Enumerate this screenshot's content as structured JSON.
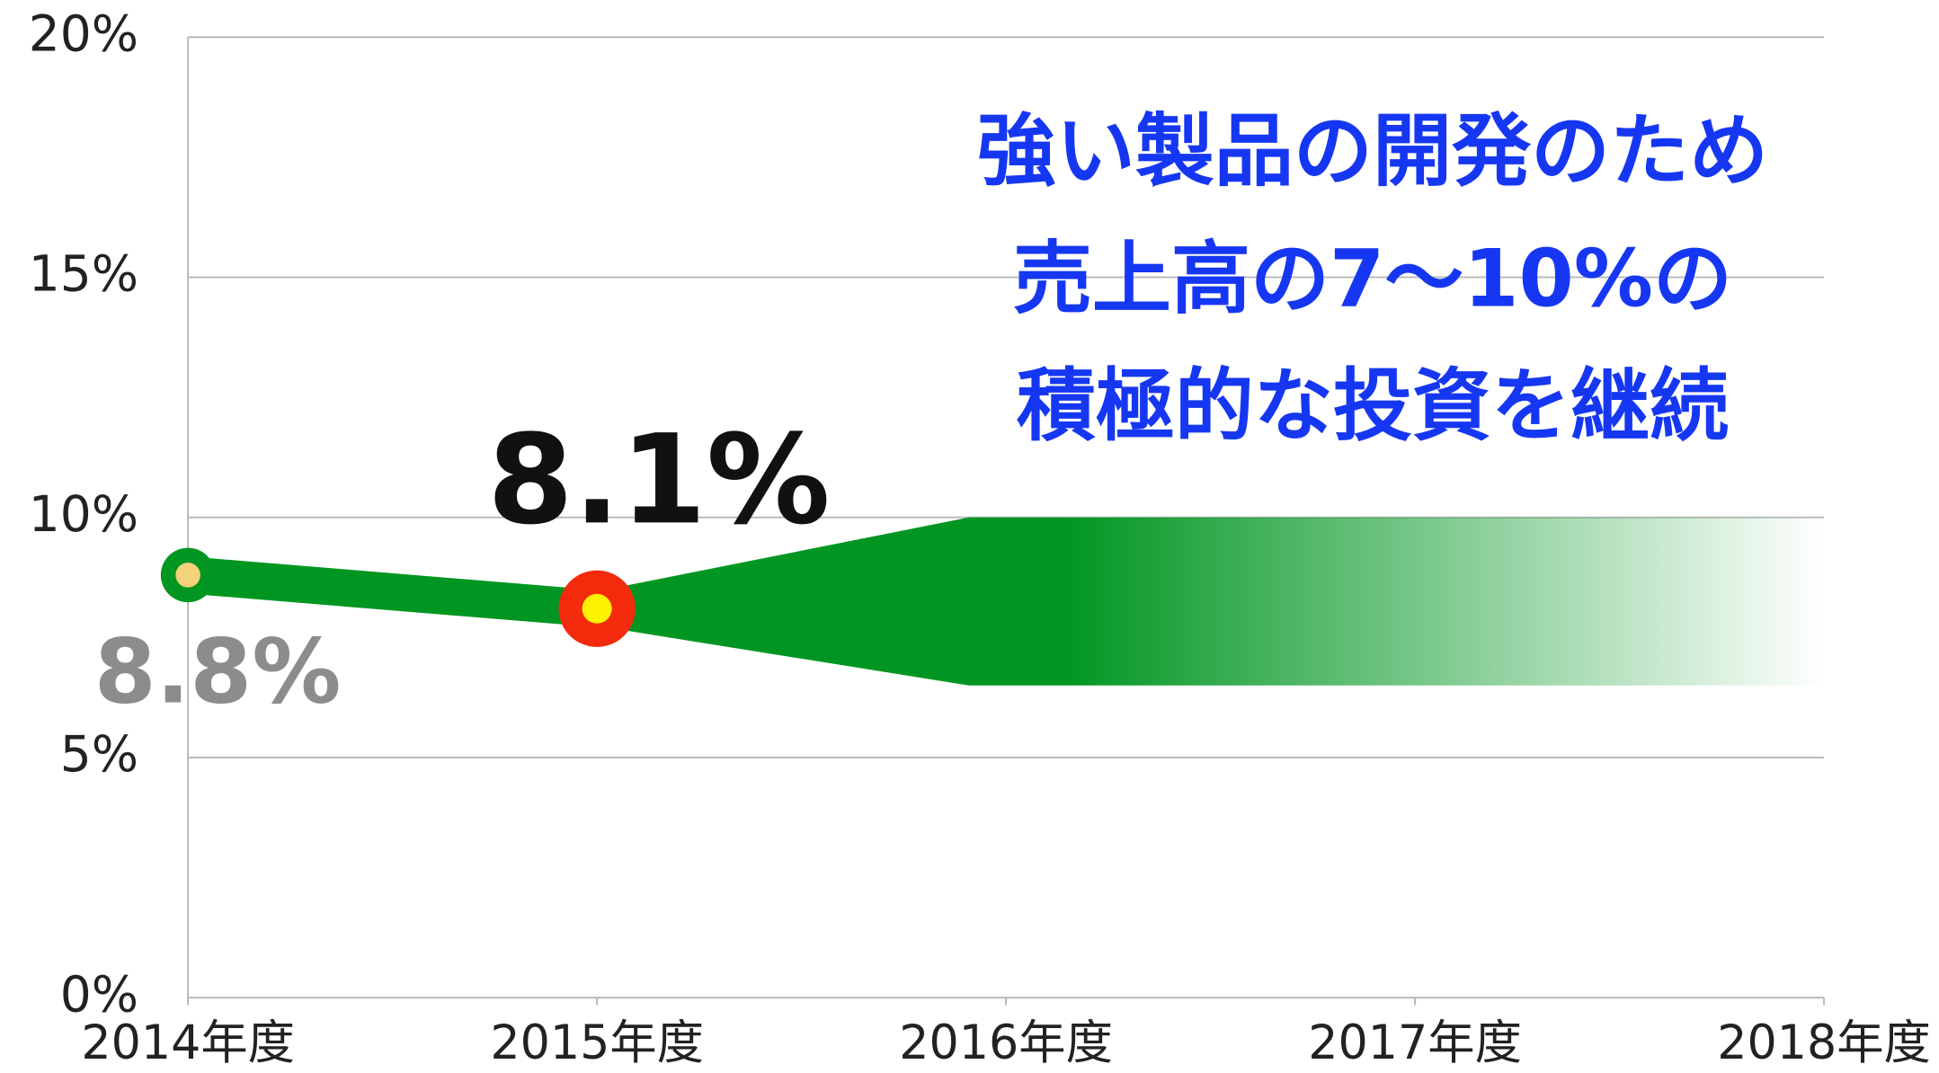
{
  "chart_data": {
    "type": "line",
    "categories": [
      "2014年度",
      "2015年度",
      "2016年度",
      "2017年度",
      "2018年度"
    ],
    "series": [
      {
        "color": "#009621",
        "values": [
          8.8,
          8.1,
          null,
          null,
          null
        ],
        "value_labels": [
          "8.8%",
          "8.1%",
          null,
          null,
          null
        ]
      }
    ],
    "target_range": {
      "low": 6.5,
      "high": 10,
      "color": "#009621"
    },
    "annotations": [
      "強い製品の開発のため",
      "売上高の7〜10%の",
      "積極的な投資を継続"
    ],
    "annotation_color": "#1637f2",
    "ylim": [
      0,
      20
    ],
    "yticks": [
      {
        "value": 0,
        "label": "0%"
      },
      {
        "value": 5,
        "label": "5%"
      },
      {
        "value": 10,
        "label": "10%"
      },
      {
        "value": 15,
        "label": "15%"
      },
      {
        "value": 20,
        "label": "20%"
      }
    ],
    "grid": true
  }
}
